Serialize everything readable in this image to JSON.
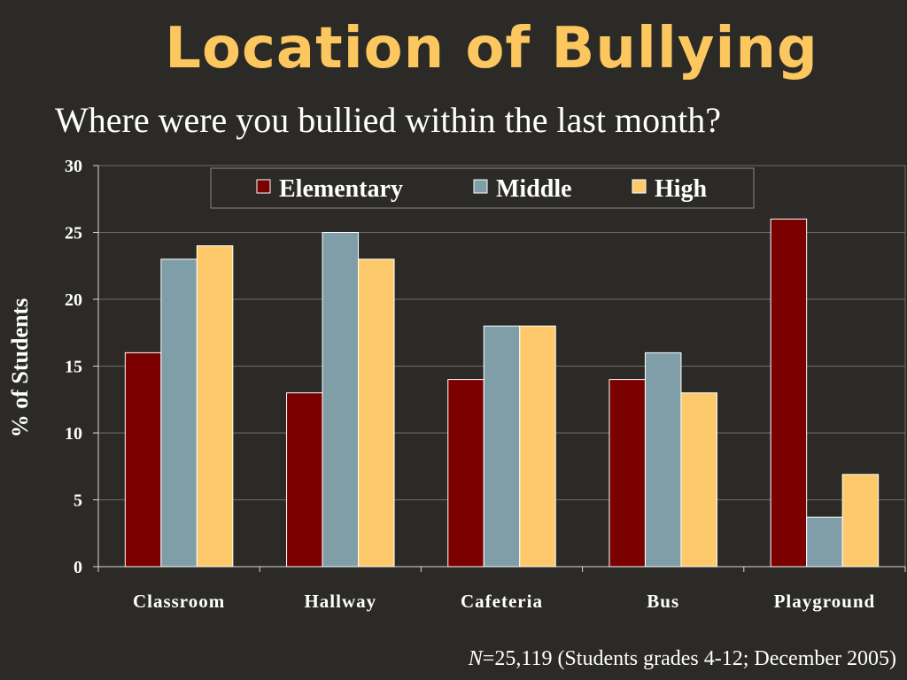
{
  "slide": {
    "title": "Location of Bullying",
    "subtitle": "Where were you bullied within the last month?",
    "footnote_n": "N",
    "footnote_rest": "=25,119 (Students grades 4-12; December 2005)"
  },
  "colors": {
    "background": "#2b2a27",
    "title": "#fdc75f",
    "text": "#ffffff"
  },
  "chart_data": {
    "type": "bar",
    "title": "",
    "xlabel": "",
    "ylabel": "% of Students",
    "categories": [
      "Classroom",
      "Hallway",
      "Cafeteria",
      "Bus",
      "Playground"
    ],
    "series": [
      {
        "name": "Elementary",
        "color": "#7b0000",
        "values": [
          16,
          13,
          14,
          14,
          26
        ]
      },
      {
        "name": "Middle",
        "color": "#7f9ea8",
        "values": [
          23,
          25,
          18,
          16,
          3.7
        ]
      },
      {
        "name": "High",
        "color": "#fec96a",
        "values": [
          24,
          23,
          18,
          13,
          6.9
        ]
      }
    ],
    "ylim": [
      0,
      30
    ],
    "yticks": [
      0,
      5,
      10,
      15,
      20,
      25,
      30
    ],
    "grid": true,
    "legend": "top-center"
  }
}
